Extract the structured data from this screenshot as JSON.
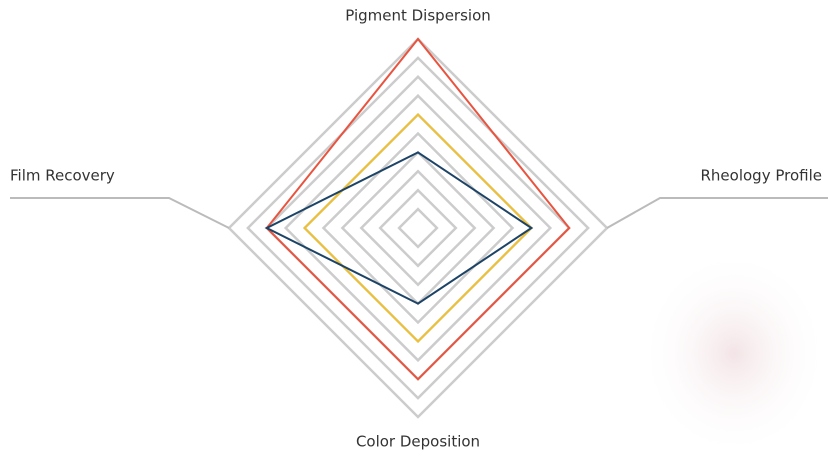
{
  "chart_data": {
    "type": "radar",
    "categories": [
      "Pigment Dispersion",
      "Rheology Profile",
      "Color Deposition",
      "Film Recovery"
    ],
    "rlim": [
      0,
      10
    ],
    "rticks": [
      1,
      2,
      3,
      4,
      5,
      6,
      7,
      8,
      9,
      10
    ],
    "grid": true,
    "series": [
      {
        "color": "#e8543f",
        "values": [
          10,
          8,
          8,
          8
        ]
      },
      {
        "color": "#f0c030",
        "values": [
          6,
          6,
          6,
          6
        ]
      },
      {
        "color": "#1d4466",
        "values": [
          4,
          6,
          4,
          8
        ]
      }
    ]
  }
}
